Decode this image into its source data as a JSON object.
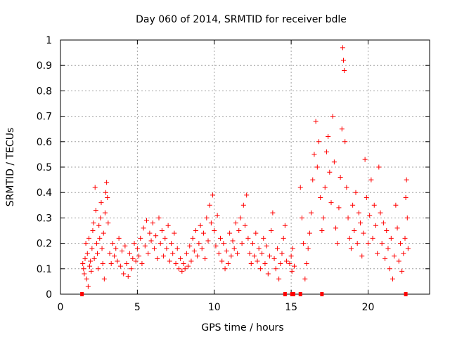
{
  "chart_data": {
    "type": "scatter",
    "title": "Day 060 of 2014, SRMTID for receiver bdle",
    "xlabel": "GPS time / hours",
    "ylabel": "SRMTID / TECUs",
    "xlim": [
      0,
      24
    ],
    "ylim": [
      0,
      1
    ],
    "xticks": [
      0,
      5,
      10,
      15,
      20
    ],
    "xtick_labels": [
      "0",
      "5",
      "10",
      "15",
      "20"
    ],
    "yticks": [
      0,
      0.1,
      0.2,
      0.3,
      0.4,
      0.5,
      0.6,
      0.7,
      0.8,
      0.9,
      1
    ],
    "ytick_labels": [
      "0",
      "0.1",
      "0.2",
      "0.3",
      "0.4",
      "0.5",
      "0.6",
      "0.7",
      "0.8",
      "0.9",
      "1"
    ],
    "grid": true,
    "marker": "+",
    "color": "#ff0000",
    "series": [
      {
        "name": "SRMTID",
        "points": [
          [
            1.45,
            0.12
          ],
          [
            1.5,
            0.1
          ],
          [
            1.55,
            0.08
          ],
          [
            1.6,
            0.14
          ],
          [
            1.65,
            0.2
          ],
          [
            1.7,
            0.06
          ],
          [
            1.75,
            0.16
          ],
          [
            1.8,
            0.03
          ],
          [
            1.85,
            0.22
          ],
          [
            1.9,
            0.11
          ],
          [
            1.95,
            0.13
          ],
          [
            2.0,
            0.09
          ],
          [
            2.05,
            0.18
          ],
          [
            2.1,
            0.25
          ],
          [
            2.15,
            0.28
          ],
          [
            2.2,
            0.14
          ],
          [
            2.25,
            0.42
          ],
          [
            2.3,
            0.33
          ],
          [
            2.35,
            0.2
          ],
          [
            2.4,
            0.16
          ],
          [
            2.45,
            0.1
          ],
          [
            2.5,
            0.27
          ],
          [
            2.55,
            0.22
          ],
          [
            2.6,
            0.3
          ],
          [
            2.65,
            0.36
          ],
          [
            2.7,
            0.18
          ],
          [
            2.75,
            0.12
          ],
          [
            2.8,
            0.24
          ],
          [
            2.85,
            0.06
          ],
          [
            2.9,
            0.32
          ],
          [
            2.95,
            0.4
          ],
          [
            3.0,
            0.44
          ],
          [
            3.05,
            0.38
          ],
          [
            3.1,
            0.28
          ],
          [
            3.2,
            0.16
          ],
          [
            3.3,
            0.12
          ],
          [
            3.4,
            0.2
          ],
          [
            3.5,
            0.15
          ],
          [
            3.6,
            0.18
          ],
          [
            3.7,
            0.13
          ],
          [
            3.8,
            0.22
          ],
          [
            3.9,
            0.11
          ],
          [
            4.0,
            0.17
          ],
          [
            4.1,
            0.08
          ],
          [
            4.2,
            0.19
          ],
          [
            4.3,
            0.12
          ],
          [
            4.4,
            0.07
          ],
          [
            4.5,
            0.16
          ],
          [
            4.6,
            0.1
          ],
          [
            4.7,
            0.14
          ],
          [
            4.8,
            0.2
          ],
          [
            4.9,
            0.13
          ],
          [
            5.0,
            0.18
          ],
          [
            5.1,
            0.15
          ],
          [
            5.2,
            0.22
          ],
          [
            5.3,
            0.12
          ],
          [
            5.4,
            0.26
          ],
          [
            5.5,
            0.19
          ],
          [
            5.6,
            0.29
          ],
          [
            5.7,
            0.16
          ],
          [
            5.8,
            0.24
          ],
          [
            5.9,
            0.21
          ],
          [
            6.0,
            0.28
          ],
          [
            6.1,
            0.18
          ],
          [
            6.2,
            0.23
          ],
          [
            6.3,
            0.14
          ],
          [
            6.4,
            0.3
          ],
          [
            6.5,
            0.2
          ],
          [
            6.6,
            0.25
          ],
          [
            6.7,
            0.15
          ],
          [
            6.8,
            0.22
          ],
          [
            6.9,
            0.18
          ],
          [
            7.0,
            0.27
          ],
          [
            7.1,
            0.13
          ],
          [
            7.2,
            0.2
          ],
          [
            7.3,
            0.16
          ],
          [
            7.4,
            0.24
          ],
          [
            7.5,
            0.12
          ],
          [
            7.6,
            0.18
          ],
          [
            7.7,
            0.1
          ],
          [
            7.8,
            0.14
          ],
          [
            7.9,
            0.09
          ],
          [
            8.0,
            0.12
          ],
          [
            8.1,
            0.1
          ],
          [
            8.2,
            0.16
          ],
          [
            8.3,
            0.11
          ],
          [
            8.4,
            0.19
          ],
          [
            8.5,
            0.13
          ],
          [
            8.6,
            0.22
          ],
          [
            8.7,
            0.17
          ],
          [
            8.8,
            0.25
          ],
          [
            8.9,
            0.15
          ],
          [
            9.0,
            0.2
          ],
          [
            9.1,
            0.27
          ],
          [
            9.2,
            0.18
          ],
          [
            9.3,
            0.24
          ],
          [
            9.4,
            0.14
          ],
          [
            9.5,
            0.3
          ],
          [
            9.6,
            0.21
          ],
          [
            9.7,
            0.35
          ],
          [
            9.8,
            0.28
          ],
          [
            9.9,
            0.39
          ],
          [
            10.0,
            0.25
          ],
          [
            10.1,
            0.19
          ],
          [
            10.2,
            0.31
          ],
          [
            10.3,
            0.16
          ],
          [
            10.4,
            0.22
          ],
          [
            10.5,
            0.13
          ],
          [
            10.6,
            0.2
          ],
          [
            10.7,
            0.1
          ],
          [
            10.8,
            0.17
          ],
          [
            10.9,
            0.12
          ],
          [
            11.0,
            0.24
          ],
          [
            11.1,
            0.15
          ],
          [
            11.2,
            0.21
          ],
          [
            11.3,
            0.18
          ],
          [
            11.4,
            0.28
          ],
          [
            11.5,
            0.16
          ],
          [
            11.6,
            0.25
          ],
          [
            11.7,
            0.3
          ],
          [
            11.8,
            0.2
          ],
          [
            11.9,
            0.35
          ],
          [
            12.0,
            0.27
          ],
          [
            12.1,
            0.39
          ],
          [
            12.2,
            0.22
          ],
          [
            12.3,
            0.16
          ],
          [
            12.4,
            0.12
          ],
          [
            12.5,
            0.2
          ],
          [
            12.6,
            0.15
          ],
          [
            12.7,
            0.24
          ],
          [
            12.8,
            0.13
          ],
          [
            12.9,
            0.18
          ],
          [
            13.0,
            0.1
          ],
          [
            13.1,
            0.16
          ],
          [
            13.2,
            0.22
          ],
          [
            13.3,
            0.12
          ],
          [
            13.4,
            0.19
          ],
          [
            13.5,
            0.08
          ],
          [
            13.6,
            0.15
          ],
          [
            13.7,
            0.25
          ],
          [
            13.8,
            0.32
          ],
          [
            13.9,
            0.14
          ],
          [
            14.0,
            0.1
          ],
          [
            14.1,
            0.18
          ],
          [
            14.2,
            0.06
          ],
          [
            14.3,
            0.12
          ],
          [
            14.4,
            0.16
          ],
          [
            14.5,
            0.22
          ],
          [
            14.6,
            0.27
          ],
          [
            14.7,
            0.13
          ],
          [
            14.9,
            0.12
          ],
          [
            15.0,
            0.15
          ],
          [
            15.05,
            0.09
          ],
          [
            15.1,
            0.18
          ],
          [
            15.2,
            0.11
          ],
          [
            15.6,
            0.42
          ],
          [
            15.7,
            0.3
          ],
          [
            15.8,
            0.2
          ],
          [
            15.9,
            0.06
          ],
          [
            16.0,
            0.12
          ],
          [
            16.1,
            0.18
          ],
          [
            16.2,
            0.24
          ],
          [
            16.3,
            0.32
          ],
          [
            16.4,
            0.45
          ],
          [
            16.5,
            0.55
          ],
          [
            16.6,
            0.68
          ],
          [
            16.7,
            0.5
          ],
          [
            16.8,
            0.6
          ],
          [
            16.9,
            0.38
          ],
          [
            17.0,
            0.25
          ],
          [
            17.1,
            0.3
          ],
          [
            17.2,
            0.42
          ],
          [
            17.3,
            0.56
          ],
          [
            17.4,
            0.62
          ],
          [
            17.5,
            0.48
          ],
          [
            17.6,
            0.36
          ],
          [
            17.7,
            0.7
          ],
          [
            17.8,
            0.52
          ],
          [
            17.9,
            0.26
          ],
          [
            18.0,
            0.2
          ],
          [
            18.1,
            0.34
          ],
          [
            18.2,
            0.46
          ],
          [
            18.3,
            0.65
          ],
          [
            18.35,
            0.97
          ],
          [
            18.4,
            0.92
          ],
          [
            18.45,
            0.88
          ],
          [
            18.5,
            0.6
          ],
          [
            18.6,
            0.42
          ],
          [
            18.7,
            0.3
          ],
          [
            18.8,
            0.22
          ],
          [
            18.9,
            0.18
          ],
          [
            19.0,
            0.35
          ],
          [
            19.1,
            0.25
          ],
          [
            19.2,
            0.4
          ],
          [
            19.3,
            0.2
          ],
          [
            19.4,
            0.32
          ],
          [
            19.5,
            0.28
          ],
          [
            19.6,
            0.15
          ],
          [
            19.7,
            0.24
          ],
          [
            19.8,
            0.53
          ],
          [
            19.9,
            0.38
          ],
          [
            20.0,
            0.2
          ],
          [
            20.1,
            0.31
          ],
          [
            20.2,
            0.45
          ],
          [
            20.3,
            0.22
          ],
          [
            20.4,
            0.35
          ],
          [
            20.5,
            0.27
          ],
          [
            20.6,
            0.16
          ],
          [
            20.7,
            0.5
          ],
          [
            20.8,
            0.32
          ],
          [
            20.9,
            0.2
          ],
          [
            21.0,
            0.28
          ],
          [
            21.1,
            0.14
          ],
          [
            21.2,
            0.25
          ],
          [
            21.3,
            0.18
          ],
          [
            21.4,
            0.1
          ],
          [
            21.5,
            0.22
          ],
          [
            21.6,
            0.06
          ],
          [
            21.7,
            0.15
          ],
          [
            21.8,
            0.35
          ],
          [
            21.9,
            0.26
          ],
          [
            22.0,
            0.13
          ],
          [
            22.1,
            0.2
          ],
          [
            22.2,
            0.09
          ],
          [
            22.3,
            0.16
          ],
          [
            22.4,
            0.22
          ],
          [
            22.45,
            0.38
          ],
          [
            22.5,
            0.45
          ],
          [
            22.55,
            0.3
          ],
          [
            22.6,
            0.18
          ]
        ]
      }
    ],
    "zero_markers": [
      1.4,
      14.6,
      15.05,
      15.15,
      15.6,
      17.0,
      22.45
    ]
  }
}
